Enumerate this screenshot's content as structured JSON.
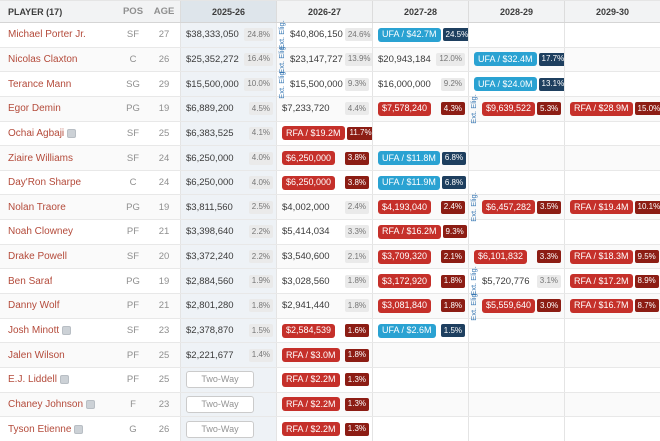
{
  "labels": {
    "ext_elig": "Ext. Elig.",
    "two_way": "Two-Way"
  },
  "colors": {
    "rfa_red": "#c5302a",
    "ufa_blue": "#2aa2d2",
    "pct_dark_red": "#8c1d14",
    "pct_navy": "#1e3f5f",
    "player_link": "#b44b3b",
    "ext_label_blue": "#3878b4",
    "highlight_column": "#eef2f6",
    "highlight_header": "#dee5eb"
  },
  "header": {
    "columns": [
      {
        "key": "player",
        "label": "PLAYER (17)",
        "highlight": false
      },
      {
        "key": "pos",
        "label": "POS",
        "highlight": false
      },
      {
        "key": "age",
        "label": "AGE",
        "highlight": false
      },
      {
        "key": "s2025-26",
        "label": "2025-26",
        "highlight": true
      },
      {
        "key": "s2026-27",
        "label": "2026-27",
        "highlight": false
      },
      {
        "key": "s2027-28",
        "label": "2027-28",
        "highlight": false
      },
      {
        "key": "s2028-29",
        "label": "2028-29",
        "highlight": false
      },
      {
        "key": "s2029-30",
        "label": "2029-30",
        "highlight": false
      }
    ]
  },
  "rows": [
    {
      "player": "Michael Porter Jr.",
      "icon": false,
      "pos": "SF",
      "age": "27",
      "seasons": [
        {
          "k": "money",
          "v": "$38,333,050",
          "p": "24.8%"
        },
        {
          "k": "money",
          "v": "$40,806,150",
          "p": "24.6%",
          "ext": true
        },
        {
          "k": "ufa",
          "v": "UFA / $42.7M",
          "p": "24.5%"
        },
        {
          "k": "empty"
        },
        {
          "k": "empty"
        }
      ]
    },
    {
      "player": "Nicolas Claxton",
      "icon": false,
      "pos": "C",
      "age": "26",
      "seasons": [
        {
          "k": "money",
          "v": "$25,352,272",
          "p": "16.4%"
        },
        {
          "k": "money",
          "v": "$23,147,727",
          "p": "13.9%",
          "ext": true
        },
        {
          "k": "money",
          "v": "$20,943,184",
          "p": "12.0%"
        },
        {
          "k": "ufa",
          "v": "UFA / $32.4M",
          "p": "17.7%"
        },
        {
          "k": "empty"
        }
      ]
    },
    {
      "player": "Terance Mann",
      "icon": false,
      "pos": "SG",
      "age": "29",
      "seasons": [
        {
          "k": "money",
          "v": "$15,500,000",
          "p": "10.0%"
        },
        {
          "k": "money",
          "v": "$15,500,000",
          "p": "9.3%",
          "ext": true
        },
        {
          "k": "money",
          "v": "$16,000,000",
          "p": "9.2%"
        },
        {
          "k": "ufa",
          "v": "UFA / $24.0M",
          "p": "13.1%"
        },
        {
          "k": "empty"
        }
      ]
    },
    {
      "player": "Egor Demin",
      "icon": false,
      "pos": "PG",
      "age": "19",
      "seasons": [
        {
          "k": "money",
          "v": "$6,889,200",
          "p": "4.5%"
        },
        {
          "k": "money",
          "v": "$7,233,720",
          "p": "4.4%"
        },
        {
          "k": "option",
          "v": "$7,578,240",
          "p": "4.3%"
        },
        {
          "k": "option",
          "v": "$9,639,522",
          "p": "5.3%",
          "ext": true
        },
        {
          "k": "rfa",
          "v": "RFA / $28.9M",
          "p": "15.0%"
        }
      ]
    },
    {
      "player": "Ochai Agbaji",
      "icon": true,
      "pos": "SF",
      "age": "25",
      "seasons": [
        {
          "k": "money",
          "v": "$6,383,525",
          "p": "4.1%"
        },
        {
          "k": "rfa",
          "v": "RFA / $19.2M",
          "p": "11.7%"
        },
        {
          "k": "empty"
        },
        {
          "k": "empty"
        },
        {
          "k": "empty"
        }
      ]
    },
    {
      "player": "Ziaire Williams",
      "icon": false,
      "pos": "SF",
      "age": "24",
      "seasons": [
        {
          "k": "money",
          "v": "$6,250,000",
          "p": "4.0%"
        },
        {
          "k": "option",
          "v": "$6,250,000",
          "p": "3.8%"
        },
        {
          "k": "ufa",
          "v": "UFA / $11.8M",
          "p": "6.8%"
        },
        {
          "k": "empty"
        },
        {
          "k": "empty"
        }
      ]
    },
    {
      "player": "Day'Ron Sharpe",
      "icon": false,
      "pos": "C",
      "age": "24",
      "seasons": [
        {
          "k": "money",
          "v": "$6,250,000",
          "p": "4.0%"
        },
        {
          "k": "option",
          "v": "$6,250,000",
          "p": "3.8%"
        },
        {
          "k": "ufa",
          "v": "UFA / $11.9M",
          "p": "6.8%"
        },
        {
          "k": "empty"
        },
        {
          "k": "empty"
        }
      ]
    },
    {
      "player": "Nolan Traore",
      "icon": false,
      "pos": "PG",
      "age": "19",
      "seasons": [
        {
          "k": "money",
          "v": "$3,811,560",
          "p": "2.5%"
        },
        {
          "k": "money",
          "v": "$4,002,000",
          "p": "2.4%"
        },
        {
          "k": "option",
          "v": "$4,193,040",
          "p": "2.4%"
        },
        {
          "k": "option",
          "v": "$6,457,282",
          "p": "3.5%",
          "ext": true
        },
        {
          "k": "rfa",
          "v": "RFA / $19.4M",
          "p": "10.1%"
        }
      ]
    },
    {
      "player": "Noah Clowney",
      "icon": false,
      "pos": "PF",
      "age": "21",
      "seasons": [
        {
          "k": "money",
          "v": "$3,398,640",
          "p": "2.2%"
        },
        {
          "k": "money",
          "v": "$5,414,034",
          "p": "3.3%"
        },
        {
          "k": "rfa",
          "v": "RFA / $16.2M",
          "p": "9.3%"
        },
        {
          "k": "empty"
        },
        {
          "k": "empty"
        }
      ]
    },
    {
      "player": "Drake Powell",
      "icon": false,
      "pos": "SF",
      "age": "20",
      "seasons": [
        {
          "k": "money",
          "v": "$3,372,240",
          "p": "2.2%"
        },
        {
          "k": "money",
          "v": "$3,540,600",
          "p": "2.1%"
        },
        {
          "k": "option",
          "v": "$3,709,320",
          "p": "2.1%"
        },
        {
          "k": "option",
          "v": "$6,101,832",
          "p": "3.3%"
        },
        {
          "k": "rfa",
          "v": "RFA / $18.3M",
          "p": "9.5%"
        }
      ]
    },
    {
      "player": "Ben Saraf",
      "icon": false,
      "pos": "PG",
      "age": "19",
      "seasons": [
        {
          "k": "money",
          "v": "$2,884,560",
          "p": "1.9%"
        },
        {
          "k": "money",
          "v": "$3,028,560",
          "p": "1.8%"
        },
        {
          "k": "option",
          "v": "$3,172,920",
          "p": "1.8%"
        },
        {
          "k": "money",
          "v": "$5,720,776",
          "p": "3.1%",
          "ext": true
        },
        {
          "k": "rfa",
          "v": "RFA / $17.2M",
          "p": "8.9%"
        }
      ]
    },
    {
      "player": "Danny Wolf",
      "icon": false,
      "pos": "PF",
      "age": "21",
      "seasons": [
        {
          "k": "money",
          "v": "$2,801,280",
          "p": "1.8%"
        },
        {
          "k": "money",
          "v": "$2,941,440",
          "p": "1.8%"
        },
        {
          "k": "option",
          "v": "$3,081,840",
          "p": "1.8%"
        },
        {
          "k": "option",
          "v": "$5,559,640",
          "p": "3.0%",
          "ext": true
        },
        {
          "k": "rfa",
          "v": "RFA / $16.7M",
          "p": "8.7%"
        }
      ]
    },
    {
      "player": "Josh Minott",
      "icon": true,
      "pos": "SF",
      "age": "23",
      "seasons": [
        {
          "k": "money",
          "v": "$2,378,870",
          "p": "1.5%"
        },
        {
          "k": "option",
          "v": "$2,584,539",
          "p": "1.6%"
        },
        {
          "k": "ufa",
          "v": "UFA / $2.6M",
          "p": "1.5%"
        },
        {
          "k": "empty"
        },
        {
          "k": "empty"
        }
      ]
    },
    {
      "player": "Jalen Wilson",
      "icon": false,
      "pos": "PF",
      "age": "25",
      "seasons": [
        {
          "k": "money",
          "v": "$2,221,677",
          "p": "1.4%"
        },
        {
          "k": "rfa",
          "v": "RFA / $3.0M",
          "p": "1.8%"
        },
        {
          "k": "empty"
        },
        {
          "k": "empty"
        },
        {
          "k": "empty"
        }
      ]
    },
    {
      "player": "E.J. Liddell",
      "icon": true,
      "pos": "PF",
      "age": "25",
      "seasons": [
        {
          "k": "twoway"
        },
        {
          "k": "rfa",
          "v": "RFA / $2.2M",
          "p": "1.3%"
        },
        {
          "k": "empty"
        },
        {
          "k": "empty"
        },
        {
          "k": "empty"
        }
      ]
    },
    {
      "player": "Chaney Johnson",
      "icon": true,
      "pos": "F",
      "age": "23",
      "seasons": [
        {
          "k": "twoway"
        },
        {
          "k": "rfa",
          "v": "RFA / $2.2M",
          "p": "1.3%"
        },
        {
          "k": "empty"
        },
        {
          "k": "empty"
        },
        {
          "k": "empty"
        }
      ]
    },
    {
      "player": "Tyson Etienne",
      "icon": true,
      "pos": "G",
      "age": "26",
      "seasons": [
        {
          "k": "twoway"
        },
        {
          "k": "rfa",
          "v": "RFA / $2.2M",
          "p": "1.3%"
        },
        {
          "k": "empty"
        },
        {
          "k": "empty"
        },
        {
          "k": "empty"
        }
      ]
    }
  ]
}
